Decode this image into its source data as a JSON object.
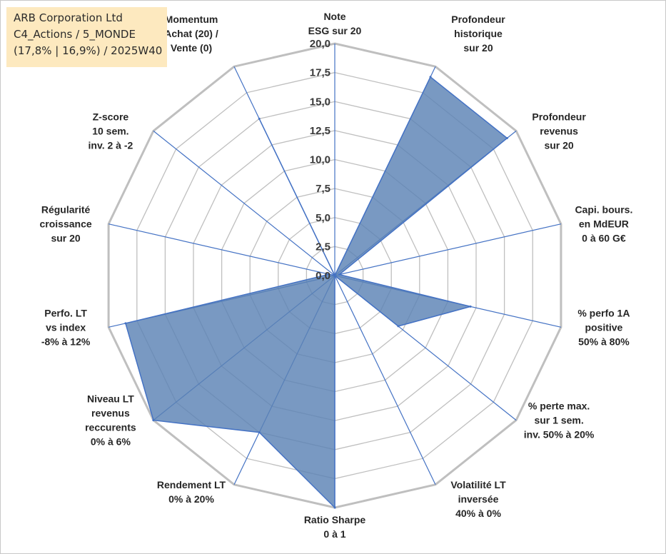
{
  "info_box": {
    "line1": "ARB Corporation Ltd",
    "line2": "C4_Actions / 5_MONDE",
    "line3": "(17,8% | 16,9%) / 2025W40"
  },
  "colors": {
    "fill": "#5b83b5",
    "stroke": "#4472c4",
    "grid_ring": "#bfbfbf",
    "spoke": "#4472c4"
  },
  "chart_data": {
    "type": "radar",
    "rmin": 0,
    "rmax": 20,
    "ticks": [
      "0,0",
      "2,5",
      "5,0",
      "7,5",
      "10,0",
      "12,5",
      "15,0",
      "17,5",
      "20,0"
    ],
    "tick_values": [
      0,
      2.5,
      5,
      7.5,
      10,
      12.5,
      15,
      17.5,
      20
    ],
    "axes": [
      {
        "label": [
          "Note",
          "ESG sur 20"
        ],
        "value": 0
      },
      {
        "label": [
          "Profondeur",
          "historique",
          "sur 20"
        ],
        "value": 19
      },
      {
        "label": [
          "Profondeur",
          "revenus",
          "sur 20"
        ],
        "value": 19
      },
      {
        "label": [
          "Capi. bours.",
          "en MdEUR",
          "0 à 60 G€"
        ],
        "value": 0.4
      },
      {
        "label": [
          "% perfo 1A",
          "positive",
          "50% à 80%"
        ],
        "value": 12
      },
      {
        "label": [
          "% perte max.",
          "sur 1 sem.",
          "inv. 50% à 20%"
        ],
        "value": 7
      },
      {
        "label": [
          "Volatilité LT",
          "inversée",
          "40% à 0%"
        ],
        "value": 0
      },
      {
        "label": [
          "Ratio Sharpe",
          "0 à 1"
        ],
        "value": 20
      },
      {
        "label": [
          "Rendement LT",
          "0% à 20%"
        ],
        "value": 15
      },
      {
        "label": [
          "Niveau LT",
          "revenus",
          "reccurents",
          "0% à 6%"
        ],
        "value": 20
      },
      {
        "label": [
          "Perfo. LT",
          "vs index",
          "-8% à 12%"
        ],
        "value": 18.5
      },
      {
        "label": [
          "Régularité",
          "croissance",
          "sur 20"
        ],
        "value": 0.5
      },
      {
        "label": [
          "Z-score",
          "10 sem.",
          "inv. 2 à -2"
        ],
        "value": 0
      },
      {
        "label": [
          "Momentum",
          "Achat (20) /",
          "Vente (0)"
        ],
        "value": 15
      }
    ]
  }
}
